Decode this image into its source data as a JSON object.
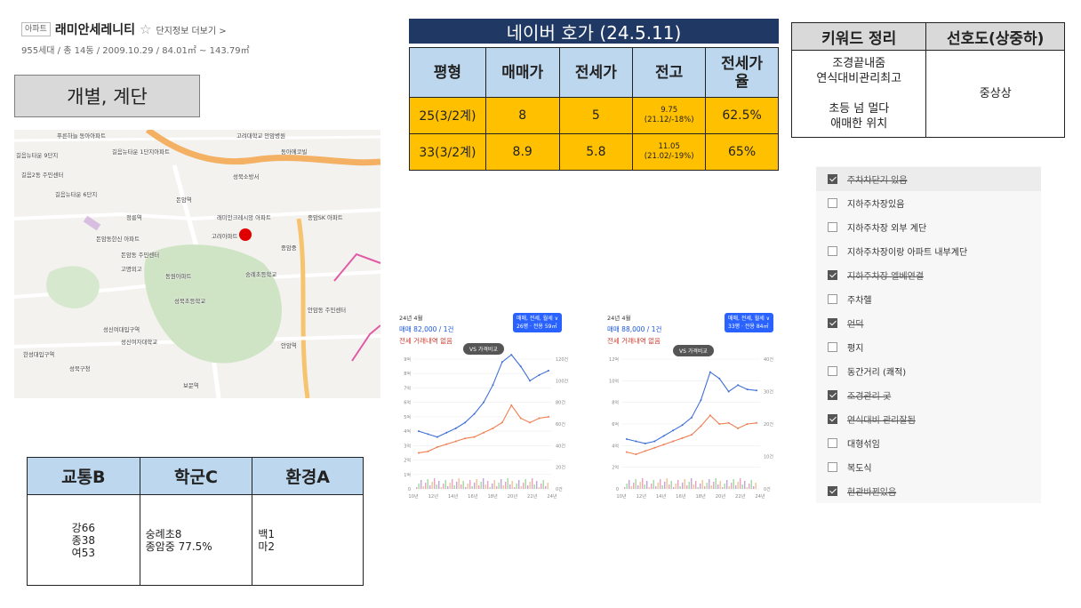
{
  "header": {
    "tag": "아파트",
    "name": "래미안세레니티",
    "star": "☆",
    "more_link": "단지정보 더보기 >",
    "meta": "955세대 / 총 14동 / 2009.10.29 / 84.01㎡ ~ 143.79㎡"
  },
  "section_button": "개별, 계단",
  "map": {
    "labels": [
      "푸른하늘 동아아파트",
      "길음뉴타운 9단지",
      "길음뉴타운 1단지아파트",
      "길음2동 주민센터",
      "고려대학교 안암병원",
      "동아에코빌",
      "길음뉴타운 6단지",
      "정릉역",
      "돈암역",
      "돈암동한신 아파트",
      "래미안크레시앙 아파트",
      "고려아파트",
      "성북소방서",
      "종암SK 아파트",
      "돈암동 주민센터",
      "고명외고",
      "성신여자대학교",
      "성북구청",
      "성북초등학교",
      "안암역",
      "성신여대입구역",
      "한성대입구역",
      "종암중",
      "숭례초등학교",
      "동원아파트",
      "보문역",
      "안암동 주민센터"
    ]
  },
  "naver": {
    "title": "네이버 호가 (24.5.11)",
    "headers": [
      "평형",
      "매매가",
      "전세가",
      "전고",
      "전세가\n율"
    ],
    "rows": [
      [
        "25(3/2계)",
        "8",
        "5",
        "9.75\n(21.12/-18%)",
        "62.5%"
      ],
      [
        "33(3/2계)",
        "8.9",
        "5.8",
        "11.05\n(21.02/-19%)",
        "65%"
      ]
    ]
  },
  "keywords": {
    "headers": [
      "키워드 정리",
      "선호도(상중하)"
    ],
    "text": "조경끝내줌\n연식대비관리최고\n\n초등 넘 멀다\n애매한 위치",
    "preference": "중상상"
  },
  "checklist": [
    {
      "label": "주차차단기 있음",
      "checked": true,
      "strike": true
    },
    {
      "label": "지하주차장있음",
      "checked": false,
      "strike": false
    },
    {
      "label": "지하주차장 외부 계단",
      "checked": false,
      "strike": false
    },
    {
      "label": "지하주차장이랑 아파트 내부계단",
      "checked": false,
      "strike": false
    },
    {
      "label": "지하주차장 엘베연결",
      "checked": true,
      "strike": true
    },
    {
      "label": "주차헬",
      "checked": false,
      "strike": false
    },
    {
      "label": "언덕",
      "checked": true,
      "strike": true
    },
    {
      "label": "평지",
      "checked": false,
      "strike": false
    },
    {
      "label": "동간거리 (쾌적)",
      "checked": false,
      "strike": false
    },
    {
      "label": "조경관리 굿",
      "checked": true,
      "strike": true
    },
    {
      "label": "연식대비 관리잘됨",
      "checked": true,
      "strike": true
    },
    {
      "label": "대형섞임",
      "checked": false,
      "strike": false
    },
    {
      "label": "복도식",
      "checked": false,
      "strike": false
    },
    {
      "label": "현관바뀐있음",
      "checked": true,
      "strike": true
    }
  ],
  "chart_data": [
    {
      "type": "line",
      "period": "24년 4월",
      "price": "매매 82,000 / 1건",
      "none": "전세 거래내역 없음",
      "pill_top": "매매, 전세, 월세 ∨",
      "pill_bottom": "26평 · 전용 59㎡",
      "vs": "VS 가격비교",
      "y_left_ticks": [
        "9억",
        "8억",
        "7억",
        "6억",
        "5억",
        "4억",
        "3억",
        "2억",
        "1억",
        "0"
      ],
      "y_right_ticks": [
        "120건",
        "100건",
        "80건",
        "60건",
        "40건",
        "20건",
        "0건"
      ],
      "x_ticks": [
        "10년",
        "12년",
        "14년",
        "16년",
        "18년",
        "20년",
        "22년",
        "24년"
      ],
      "ylim": [
        0,
        9
      ],
      "series": [
        {
          "values": [
            4.0,
            3.8,
            3.6,
            3.9,
            4.2,
            4.6,
            5.2,
            6.0,
            7.2,
            8.8,
            9.3,
            8.5,
            7.5,
            7.9,
            8.2
          ]
        },
        {
          "values": [
            2.5,
            2.6,
            2.9,
            3.1,
            3.3,
            3.5,
            3.6,
            3.9,
            4.2,
            4.6,
            5.8,
            4.9,
            4.6,
            4.9,
            5.0
          ]
        }
      ]
    },
    {
      "type": "line",
      "period": "24년 4월",
      "price": "매매 88,000 / 1건",
      "none": "전세 거래내역 없음",
      "pill_top": "매매, 전세, 월세 ∨",
      "pill_bottom": "33평 · 전용 84㎡",
      "vs": "VS 가격비교",
      "y_left_ticks": [
        "12억",
        "10억",
        "8억",
        "6억",
        "4억",
        "2억",
        "0"
      ],
      "y_right_ticks": [
        "40건",
        "30건",
        "20건",
        "10건",
        "0건"
      ],
      "x_ticks": [
        "10년",
        "12년",
        "14년",
        "16년",
        "18년",
        "20년",
        "22년",
        "24년"
      ],
      "ylim": [
        0,
        12
      ],
      "series": [
        {
          "values": [
            4.6,
            4.4,
            4.2,
            4.4,
            4.9,
            5.4,
            5.9,
            6.6,
            8.2,
            10.8,
            10.2,
            9.0,
            9.6,
            9.2,
            9.1
          ]
        },
        {
          "values": [
            3.4,
            3.2,
            3.5,
            3.8,
            4.1,
            4.4,
            4.7,
            5.0,
            5.8,
            6.8,
            6.0,
            6.1,
            5.6,
            6.0,
            6.1
          ]
        }
      ]
    }
  ],
  "env": {
    "headers": [
      "교통B",
      "학군C",
      "환경A"
    ],
    "cells": [
      "강66\n종38\n여53",
      "숭례초8\n종암중 77.5%",
      "백1\n마2"
    ]
  },
  "colors": {
    "navy": "#1f3864",
    "header_blue": "#bdd7ee",
    "yellow": "#ffc000",
    "sale_line": "#3f6fd8",
    "jeonse_line": "#ee7f53",
    "map_marker": "#e00000"
  }
}
